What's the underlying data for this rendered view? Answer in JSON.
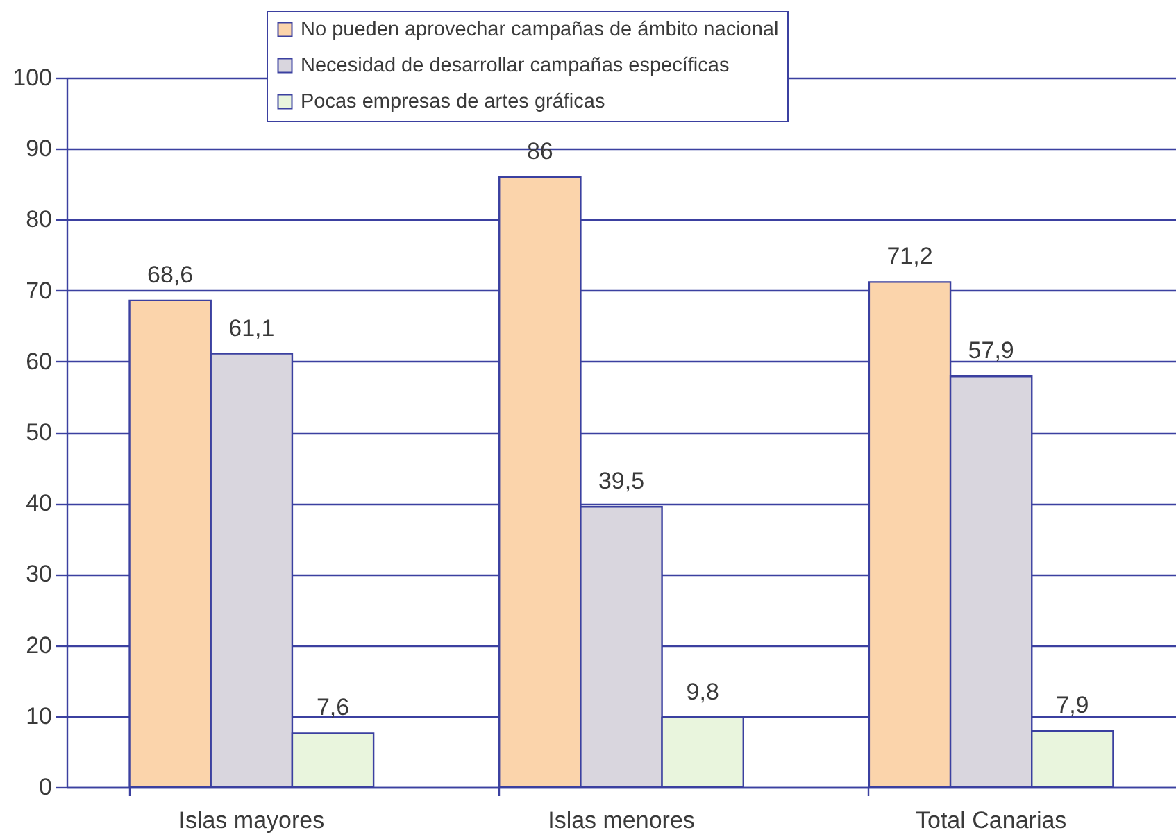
{
  "chart_data": {
    "type": "bar",
    "categories": [
      "Islas mayores",
      "Islas menores",
      "Total Canarias"
    ],
    "series": [
      {
        "name": "No pueden aprovechar campañas de ámbito nacional",
        "color": "#fbd4ab",
        "values": [
          68.6,
          86,
          71.2
        ],
        "value_labels": [
          "68,6",
          "86",
          "71,2"
        ]
      },
      {
        "name": "Necesidad de desarrollar campañas específicas",
        "color": "#d9d6de",
        "values": [
          61.1,
          39.5,
          57.9
        ],
        "value_labels": [
          "61,1",
          "39,5",
          "57,9"
        ]
      },
      {
        "name": "Pocas empresas de artes gráficas",
        "color": "#e9f5dd",
        "values": [
          7.6,
          9.8,
          7.9
        ],
        "value_labels": [
          "7,6",
          "9,8",
          "7,9"
        ]
      }
    ],
    "ylim": [
      0,
      100
    ],
    "yticks": [
      0,
      10,
      20,
      30,
      40,
      50,
      60,
      70,
      80,
      90,
      100
    ],
    "grid": "y",
    "legend": "top"
  }
}
